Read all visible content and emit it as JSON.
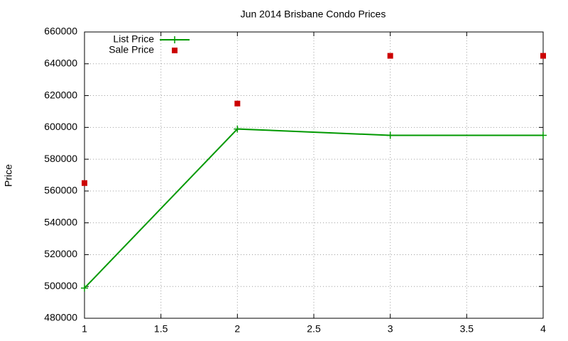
{
  "chart_data": {
    "type": "line",
    "title": "Jun 2014 Brisbane Condo Prices",
    "y_label": "Price",
    "x": [
      1,
      2,
      3,
      4
    ],
    "series": [
      {
        "name": "List Price",
        "color": "#009900",
        "mode": "lines+points",
        "values": [
          499000,
          599000,
          595000,
          595000
        ]
      },
      {
        "name": "Sale Price",
        "color": "#cc0000",
        "mode": "points",
        "values": [
          565000,
          615000,
          645000,
          645000
        ]
      }
    ],
    "xlim": [
      1,
      4
    ],
    "xticks": [
      1,
      1.5,
      2,
      2.5,
      3,
      3.5,
      4
    ],
    "ylim": [
      480000,
      660000
    ],
    "yticks": [
      480000,
      500000,
      520000,
      540000,
      560000,
      580000,
      600000,
      620000,
      640000,
      660000
    ],
    "grid": true,
    "legend": "top-left"
  }
}
